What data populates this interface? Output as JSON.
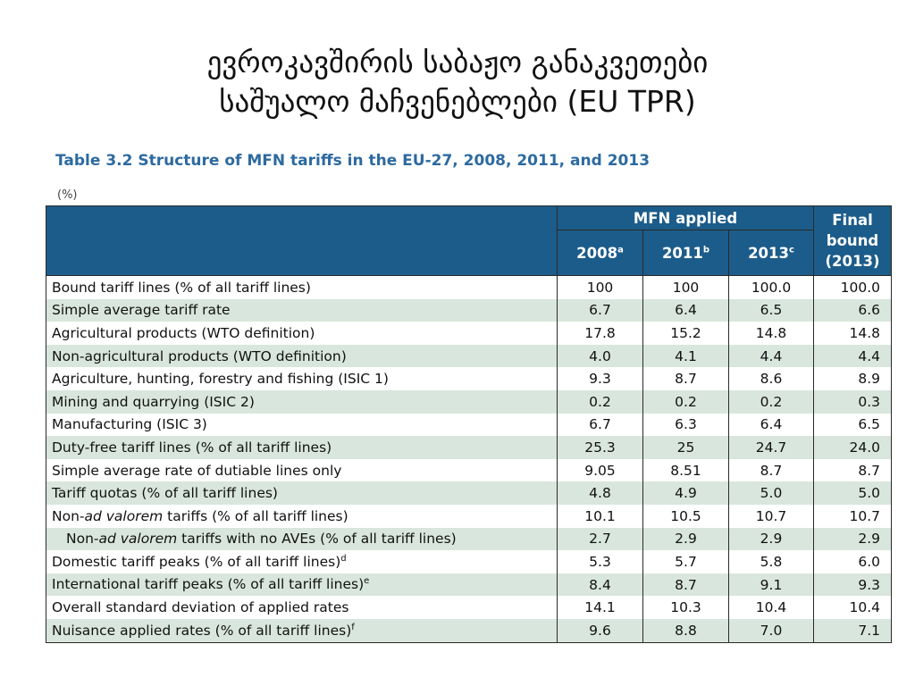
{
  "slide": {
    "title_line1": "ევროკავშირის საბაჟო განაკვეთები",
    "title_line2": "საშუალო მაჩვენებლები (EU TPR)"
  },
  "table": {
    "caption": "Table 3.2 Structure of MFN tariffs in the EU-27, 2008, 2011, and 2013",
    "unit": "(%)",
    "header_group": "MFN applied",
    "header_final": "Final bound (2013)",
    "columns": [
      {
        "label": "2008",
        "note": "a"
      },
      {
        "label": "2011",
        "note": "b"
      },
      {
        "label": "2013",
        "note": "c"
      }
    ],
    "rows": [
      {
        "label": "Bound tariff lines (% of all tariff lines)",
        "v2008": "100",
        "v2011": "100",
        "v2013": "100.0",
        "final": "100.0"
      },
      {
        "label": "Simple average tariff rate",
        "v2008": "6.7",
        "v2011": "6.4",
        "v2013": "6.5",
        "final": "6.6"
      },
      {
        "label": "Agricultural products (WTO definition)",
        "v2008": "17.8",
        "v2011": "15.2",
        "v2013": "14.8",
        "final": "14.8"
      },
      {
        "label": "Non-agricultural products (WTO definition)",
        "v2008": "4.0",
        "v2011": "4.1",
        "v2013": "4.4",
        "final": "4.4"
      },
      {
        "label": "Agriculture, hunting, forestry and fishing (ISIC 1)",
        "v2008": "9.3",
        "v2011": "8.7",
        "v2013": "8.6",
        "final": "8.9"
      },
      {
        "label": "Mining and quarrying (ISIC 2)",
        "v2008": "0.2",
        "v2011": "0.2",
        "v2013": "0.2",
        "final": "0.3"
      },
      {
        "label": "Manufacturing (ISIC 3)",
        "v2008": "6.7",
        "v2011": "6.3",
        "v2013": "6.4",
        "final": "6.5"
      },
      {
        "label": "Duty-free tariff lines (% of all tariff lines)",
        "v2008": "25.3",
        "v2011": "25",
        "v2013": "24.7",
        "final": "24.0"
      },
      {
        "label": "Simple average rate of dutiable lines only",
        "v2008": "9.05",
        "v2011": "8.51",
        "v2013": "8.7",
        "final": "8.7"
      },
      {
        "label": "Tariff quotas (% of all tariff lines)",
        "v2008": "4.8",
        "v2011": "4.9",
        "v2013": "5.0",
        "final": "5.0"
      },
      {
        "label_pre": "Non-",
        "label_em": "ad valorem",
        "label_post": " tariffs (% of all tariff lines)",
        "v2008": "10.1",
        "v2011": "10.5",
        "v2013": "10.7",
        "final": "10.7"
      },
      {
        "label_pre": "Non-",
        "label_em": "ad valorem",
        "label_post": " tariffs with no AVEs (% of all tariff lines)",
        "v2008": "2.7",
        "v2011": "2.9",
        "v2013": "2.9",
        "final": "2.9"
      },
      {
        "label": "Domestic tariff peaks (% of all tariff lines)",
        "note": "d",
        "v2008": "5.3",
        "v2011": "5.7",
        "v2013": "5.8",
        "final": "6.0"
      },
      {
        "label": "International tariff peaks (% of all tariff lines)",
        "note": "e",
        "v2008": "8.4",
        "v2011": "8.7",
        "v2013": "9.1",
        "final": "9.3"
      },
      {
        "label": "Overall standard deviation of applied rates",
        "v2008": "14.1",
        "v2011": "10.3",
        "v2013": "10.4",
        "final": "10.4"
      },
      {
        "label": "Nuisance applied rates (% of all tariff lines)",
        "note": "f",
        "v2008": "9.6",
        "v2011": "8.8",
        "v2013": "7.0",
        "final": "7.1"
      }
    ]
  }
}
